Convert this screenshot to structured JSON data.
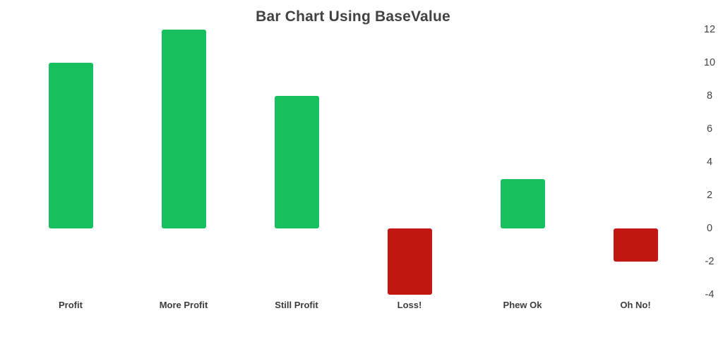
{
  "chart_data": {
    "type": "bar",
    "title": "Bar Chart Using BaseValue",
    "categories": [
      "Profit",
      "More Profit",
      "Still Profit",
      "Loss!",
      "Phew Ok",
      "Oh No!"
    ],
    "values": [
      10,
      12,
      8,
      -4,
      3,
      -2
    ],
    "base_value": 0,
    "ylim": [
      -4,
      12
    ],
    "y_ticks": [
      12,
      10,
      8,
      6,
      4,
      2,
      0,
      -2,
      -4
    ],
    "y_axis_position": "right",
    "grid": false,
    "legend": false,
    "xlabel": "",
    "ylabel": "",
    "colors": {
      "positive_bar": "#17bf5f",
      "negative_bar": "#c21612",
      "title_text": "#424242",
      "tick_text": "#424242",
      "background": "#ffffff"
    }
  }
}
